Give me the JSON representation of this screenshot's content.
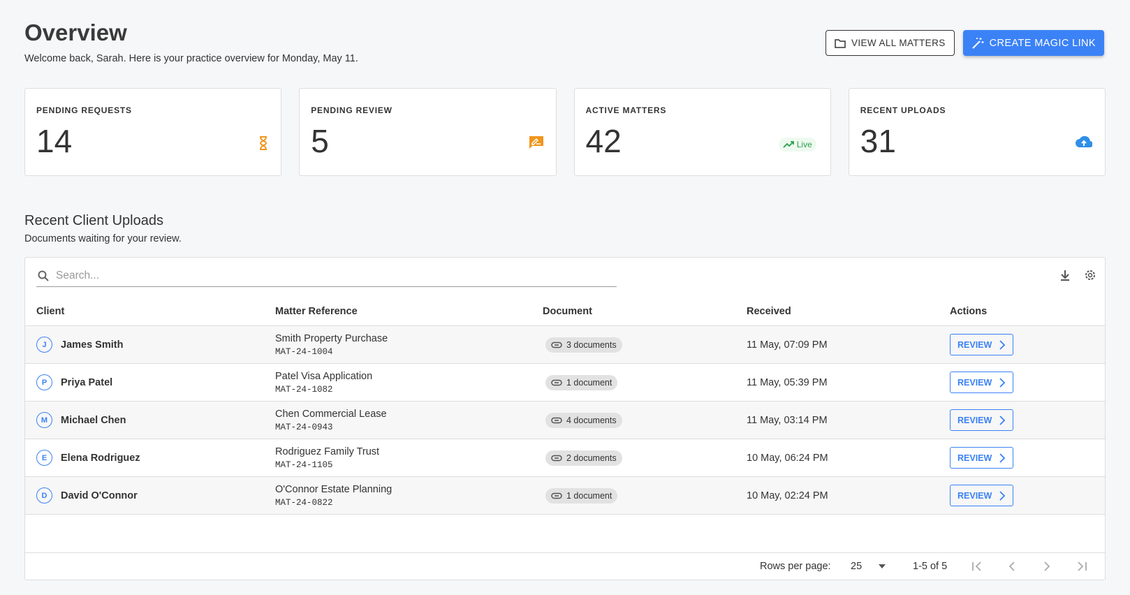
{
  "header": {
    "title": "Overview",
    "subtitle": "Welcome back, Sarah. Here is your practice overview for Monday, May 11.",
    "buttons": [
      "VIEW ALL MATTERS",
      "CREATE MAGIC LINK"
    ]
  },
  "stats": [
    {
      "label": "PENDING REQUESTS",
      "value": "14"
    },
    {
      "label": "PENDING REVIEW",
      "value": "5"
    },
    {
      "label": "ACTIVE MATTERS",
      "value": "42",
      "badge": "Live"
    },
    {
      "label": "RECENT UPLOADS",
      "value": "31"
    }
  ],
  "section": {
    "title": "Recent Client Uploads",
    "subtitle": "Documents waiting for your review."
  },
  "table": {
    "search_placeholder": "Search...",
    "columns": [
      "Client",
      "Matter Reference",
      "Document",
      "Received",
      "Actions"
    ],
    "rows": [
      {
        "initial": "J",
        "client": "James Smith",
        "matter": "Smith Property Purchase",
        "ref": "MAT-24-1004",
        "documents": "3 documents",
        "received": "11 May, 07:09 PM",
        "action": "REVIEW"
      },
      {
        "initial": "P",
        "client": "Priya Patel",
        "matter": "Patel Visa Application",
        "ref": "MAT-24-1082",
        "documents": "1 document",
        "received": "11 May, 05:39 PM",
        "action": "REVIEW"
      },
      {
        "initial": "M",
        "client": "Michael Chen",
        "matter": "Chen Commercial Lease",
        "ref": "MAT-24-0943",
        "documents": "4 documents",
        "received": "11 May, 03:14 PM",
        "action": "REVIEW"
      },
      {
        "initial": "E",
        "client": "Elena Rodriguez",
        "matter": "Rodriguez Family Trust",
        "ref": "MAT-24-1105",
        "documents": "2 documents",
        "received": "10 May, 06:24 PM",
        "action": "REVIEW"
      },
      {
        "initial": "D",
        "client": "David O'Connor",
        "matter": "O'Connor Estate Planning",
        "ref": "MAT-24-0822",
        "documents": "1 document",
        "received": "10 May, 02:24 PM",
        "action": "REVIEW"
      }
    ],
    "footer": {
      "rows_label": "Rows per page:",
      "rows_value": "25",
      "range": "1-5 of 5"
    }
  }
}
